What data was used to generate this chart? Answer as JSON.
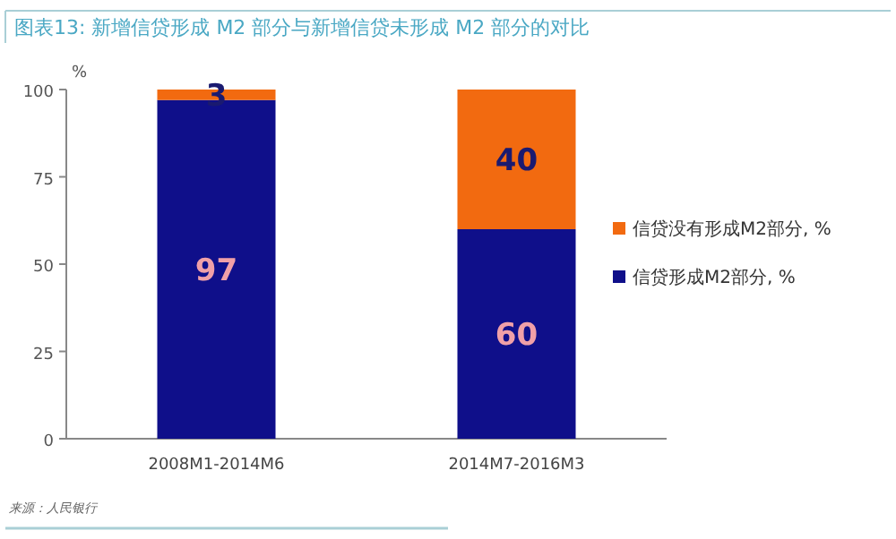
{
  "chart_data": {
    "type": "bar",
    "title": "图表13: 新增信贷形成 M2 部分与新增信贷未形成 M2 部分的对比",
    "ylabel": "%",
    "categories": [
      "2008M1-2014M6",
      "2014M7-2016M3"
    ],
    "series": [
      {
        "name": "信贷形成M2部分, %",
        "color": "#0f0f8a",
        "values": [
          97,
          60
        ]
      },
      {
        "name": "信贷没有形成M2部分, %",
        "color": "#f26a10",
        "values": [
          3,
          40
        ]
      }
    ],
    "stacked": true,
    "data_labels": true,
    "legend": "right",
    "grid": false,
    "ylim": [
      0,
      100
    ],
    "yticks": [
      0,
      25,
      50,
      75,
      100
    ],
    "annotations": [
      "来源：人民银行"
    ]
  }
}
